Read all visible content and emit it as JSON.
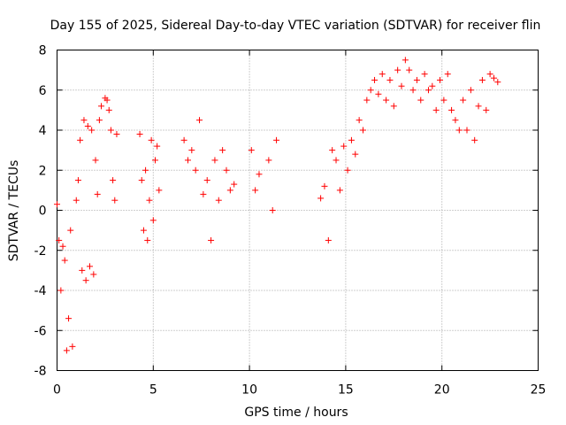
{
  "chart_data": {
    "type": "scatter",
    "title": "Day 155 of 2025, Sidereal Day-to-day VTEC variation (SDTVAR) for receiver flin",
    "xlabel": "GPS time / hours",
    "ylabel": "SDTVAR / TECUs",
    "xlim": [
      0,
      25
    ],
    "ylim": [
      -8,
      8
    ],
    "x_ticks": [
      0,
      5,
      10,
      15,
      20,
      25
    ],
    "y_ticks": [
      -8,
      -6,
      -4,
      -2,
      0,
      2,
      4,
      6,
      8
    ],
    "grid": true,
    "marker": "+",
    "color": "#ff0000",
    "series": [
      {
        "name": "SDTVAR",
        "x": [
          0.0,
          0.1,
          0.2,
          0.3,
          0.4,
          0.5,
          0.6,
          0.7,
          0.8,
          1.0,
          1.1,
          1.2,
          1.3,
          1.4,
          1.5,
          1.6,
          1.7,
          1.8,
          1.9,
          2.0,
          2.1,
          2.2,
          2.3,
          2.5,
          2.6,
          2.7,
          2.8,
          2.9,
          3.0,
          3.1,
          4.3,
          4.4,
          4.5,
          4.6,
          4.7,
          4.8,
          4.9,
          5.0,
          5.1,
          5.2,
          5.3,
          6.6,
          6.8,
          7.0,
          7.2,
          7.4,
          7.6,
          7.8,
          8.0,
          8.2,
          8.4,
          8.6,
          8.8,
          9.0,
          9.2,
          10.1,
          10.3,
          10.5,
          11.0,
          11.2,
          11.4,
          13.7,
          13.9,
          14.1,
          14.3,
          14.5,
          14.7,
          14.9,
          15.1,
          15.3,
          15.5,
          15.7,
          15.9,
          16.1,
          16.3,
          16.5,
          16.7,
          16.9,
          17.1,
          17.3,
          17.5,
          17.7,
          17.9,
          18.1,
          18.3,
          18.5,
          18.7,
          18.9,
          19.1,
          19.3,
          19.5,
          19.7,
          19.9,
          20.1,
          20.3,
          20.5,
          20.7,
          20.9,
          21.1,
          21.3,
          21.5,
          21.7,
          21.9,
          22.1,
          22.3,
          22.5,
          22.7,
          22.9
        ],
        "y": [
          0.3,
          -1.5,
          -4.0,
          -1.8,
          -2.5,
          -7.0,
          -5.4,
          -1.0,
          -6.8,
          0.5,
          1.5,
          3.5,
          -3.0,
          4.5,
          -3.5,
          4.2,
          -2.8,
          4.0,
          -3.2,
          2.5,
          0.8,
          4.5,
          5.2,
          5.6,
          5.5,
          5.0,
          4.0,
          1.5,
          0.5,
          3.8,
          3.8,
          1.5,
          -1.0,
          2.0,
          -1.5,
          0.5,
          3.5,
          -0.5,
          2.5,
          3.2,
          1.0,
          3.5,
          2.5,
          3.0,
          2.0,
          4.5,
          0.8,
          1.5,
          -1.5,
          2.5,
          0.5,
          3.0,
          2.0,
          1.0,
          1.3,
          3.0,
          1.0,
          1.8,
          2.5,
          0.0,
          3.5,
          0.6,
          1.2,
          -1.5,
          3.0,
          2.5,
          1.0,
          3.2,
          2.0,
          3.5,
          2.8,
          4.5,
          4.0,
          5.5,
          6.0,
          6.5,
          5.8,
          6.8,
          5.5,
          6.5,
          5.2,
          7.0,
          6.2,
          7.5,
          7.0,
          6.0,
          6.5,
          5.5,
          6.8,
          6.0,
          6.2,
          5.0,
          6.5,
          5.5,
          6.8,
          5.0,
          4.5,
          4.0,
          5.5,
          4.0,
          6.0,
          3.5,
          5.2,
          6.5,
          5.0,
          6.8,
          6.6,
          6.4
        ]
      }
    ]
  }
}
